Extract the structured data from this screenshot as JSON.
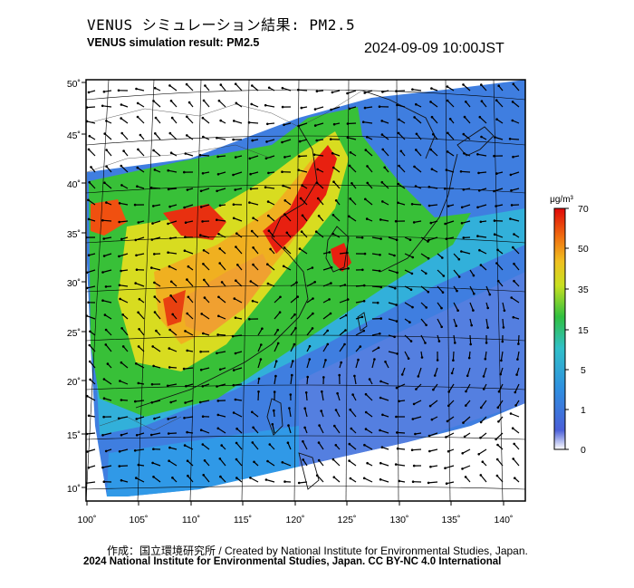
{
  "title_jp": "VENUS シミュレーション結果: PM2.5",
  "title_en": "VENUS simulation result: PM2.5",
  "timestamp": "2024-09-09 10:00JST",
  "map": {
    "lat_ticks": [
      "50˚",
      "45˚",
      "40˚",
      "35˚",
      "30˚",
      "25˚",
      "20˚",
      "15˚",
      "10˚"
    ],
    "lon_ticks": [
      "100˚",
      "105˚",
      "110˚",
      "115˚",
      "120˚",
      "125˚",
      "130˚",
      "135˚",
      "140˚"
    ]
  },
  "colorbar": {
    "unit": "μg/m³",
    "labels": [
      "70",
      "50",
      "35",
      "15",
      "5",
      "1",
      "0"
    ],
    "colors": [
      "#ffffff",
      "#3050e0",
      "#2aa0e8",
      "#30c8c0",
      "#30c030",
      "#c8e020",
      "#f0c020",
      "#f07010",
      "#e01010"
    ]
  },
  "credits": {
    "line1": "作成：国立環境研究所 / Created by National Institute for Environmental Studies, Japan.",
    "line2": "2024 National Institute for Environmental Studies, Japan. CC BY-NC 4.0 International"
  }
}
